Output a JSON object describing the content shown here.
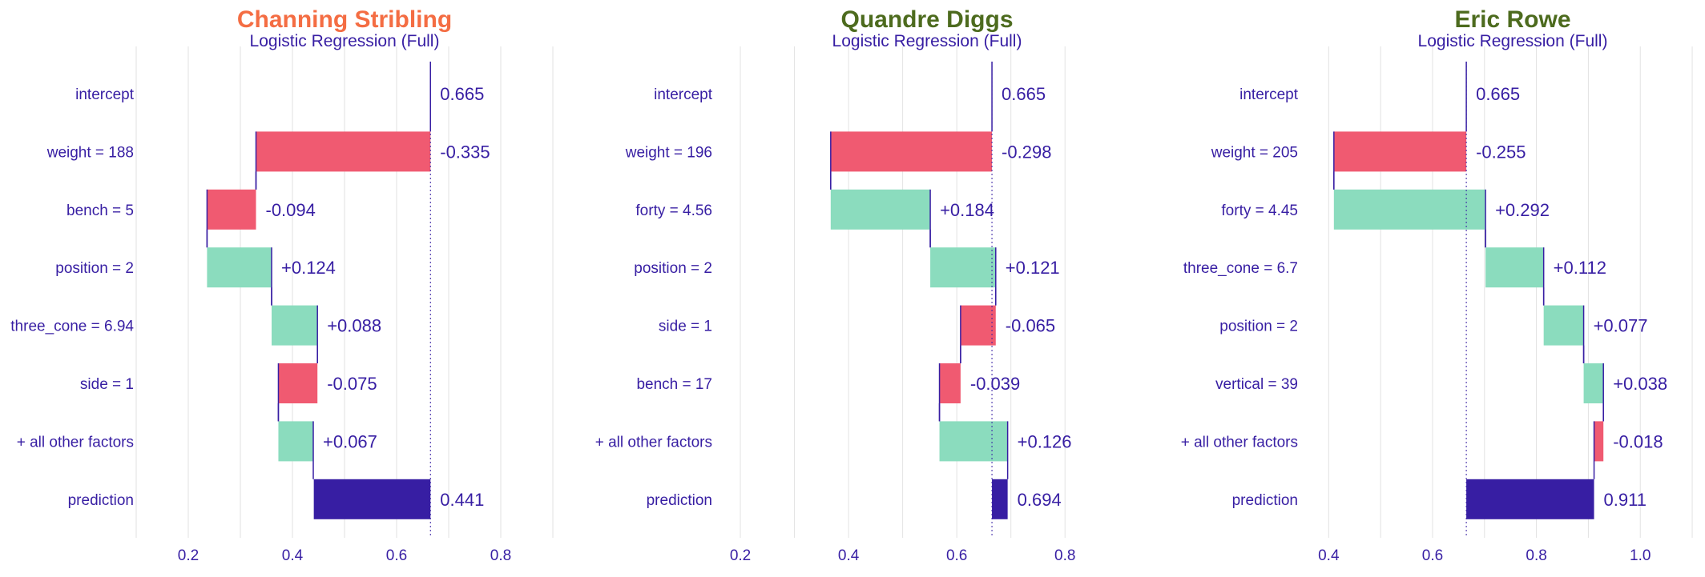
{
  "colors": {
    "positive": "#8bdcbe",
    "negative": "#f05a71",
    "prediction": "#371ea3",
    "text": "#371ea3",
    "grid": "#e2e2e2"
  },
  "chart_data": [
    {
      "type": "bar",
      "title": "Channing Stribling",
      "title_color": "#f46d43",
      "subtitle": "Logistic Regression (Full)",
      "xlim": [
        0.1,
        0.9
      ],
      "ticks": [
        0.2,
        0.4,
        0.6,
        0.8
      ],
      "tick_labels": [
        "0.2",
        "0.4",
        "0.6",
        "0.8"
      ],
      "intercept": 0.665,
      "rows": [
        {
          "label": "intercept",
          "value": 0.665,
          "text": "0.665",
          "kind": "intercept"
        },
        {
          "label": "weight = 188",
          "value": -0.335,
          "text": "-0.335",
          "kind": "contribution"
        },
        {
          "label": "bench = 5",
          "value": -0.094,
          "text": "-0.094",
          "kind": "contribution"
        },
        {
          "label": "position = 2",
          "value": 0.124,
          "text": "+0.124",
          "kind": "contribution"
        },
        {
          "label": "three_cone = 6.94",
          "value": 0.088,
          "text": "+0.088",
          "kind": "contribution"
        },
        {
          "label": "side = 1",
          "value": -0.075,
          "text": "-0.075",
          "kind": "contribution"
        },
        {
          "label": "+ all other factors",
          "value": 0.067,
          "text": "+0.067",
          "kind": "contribution"
        },
        {
          "label": "prediction",
          "value": 0.441,
          "text": "0.441",
          "kind": "prediction"
        }
      ]
    },
    {
      "type": "bar",
      "title": "Quandre Diggs",
      "title_color": "#4d6b1e",
      "subtitle": "Logistic Regression (Full)",
      "xlim": [
        0.12,
        0.89
      ],
      "ticks": [
        0.2,
        0.4,
        0.6,
        0.8
      ],
      "tick_labels": [
        "0.2",
        "0.4",
        "0.6",
        "0.8"
      ],
      "intercept": 0.665,
      "rows": [
        {
          "label": "intercept",
          "value": 0.665,
          "text": "0.665",
          "kind": "intercept"
        },
        {
          "label": "weight = 196",
          "value": -0.298,
          "text": "-0.298",
          "kind": "contribution"
        },
        {
          "label": "forty = 4.56",
          "value": 0.184,
          "text": "+0.184",
          "kind": "contribution"
        },
        {
          "label": "position = 2",
          "value": 0.121,
          "text": "+0.121",
          "kind": "contribution"
        },
        {
          "label": "side = 1",
          "value": -0.065,
          "text": "-0.065",
          "kind": "contribution"
        },
        {
          "label": "bench = 17",
          "value": -0.039,
          "text": "-0.039",
          "kind": "contribution"
        },
        {
          "label": "+ all other factors",
          "value": 0.126,
          "text": "+0.126",
          "kind": "contribution"
        },
        {
          "label": "prediction",
          "value": 0.694,
          "text": "0.694",
          "kind": "prediction"
        }
      ]
    },
    {
      "type": "bar",
      "title": "Eric Rowe",
      "title_color": "#4d6b1e",
      "subtitle": "Logistic Regression (Full)",
      "xlim": [
        0.31,
        1.12
      ],
      "ticks": [
        0.4,
        0.6,
        0.8,
        1.0
      ],
      "tick_labels": [
        "0.4",
        "0.6",
        "0.8",
        "1.0"
      ],
      "intercept": 0.665,
      "rows": [
        {
          "label": "intercept",
          "value": 0.665,
          "text": "0.665",
          "kind": "intercept"
        },
        {
          "label": "weight = 205",
          "value": -0.255,
          "text": "-0.255",
          "kind": "contribution"
        },
        {
          "label": "forty = 4.45",
          "value": 0.292,
          "text": "+0.292",
          "kind": "contribution"
        },
        {
          "label": "three_cone = 6.7",
          "value": 0.112,
          "text": "+0.112",
          "kind": "contribution"
        },
        {
          "label": "position = 2",
          "value": 0.077,
          "text": "+0.077",
          "kind": "contribution"
        },
        {
          "label": "vertical = 39",
          "value": 0.038,
          "text": "+0.038",
          "kind": "contribution"
        },
        {
          "label": "+ all other factors",
          "value": -0.018,
          "text": "-0.018",
          "kind": "contribution"
        },
        {
          "label": "prediction",
          "value": 0.911,
          "text": "0.911",
          "kind": "prediction"
        }
      ]
    }
  ]
}
